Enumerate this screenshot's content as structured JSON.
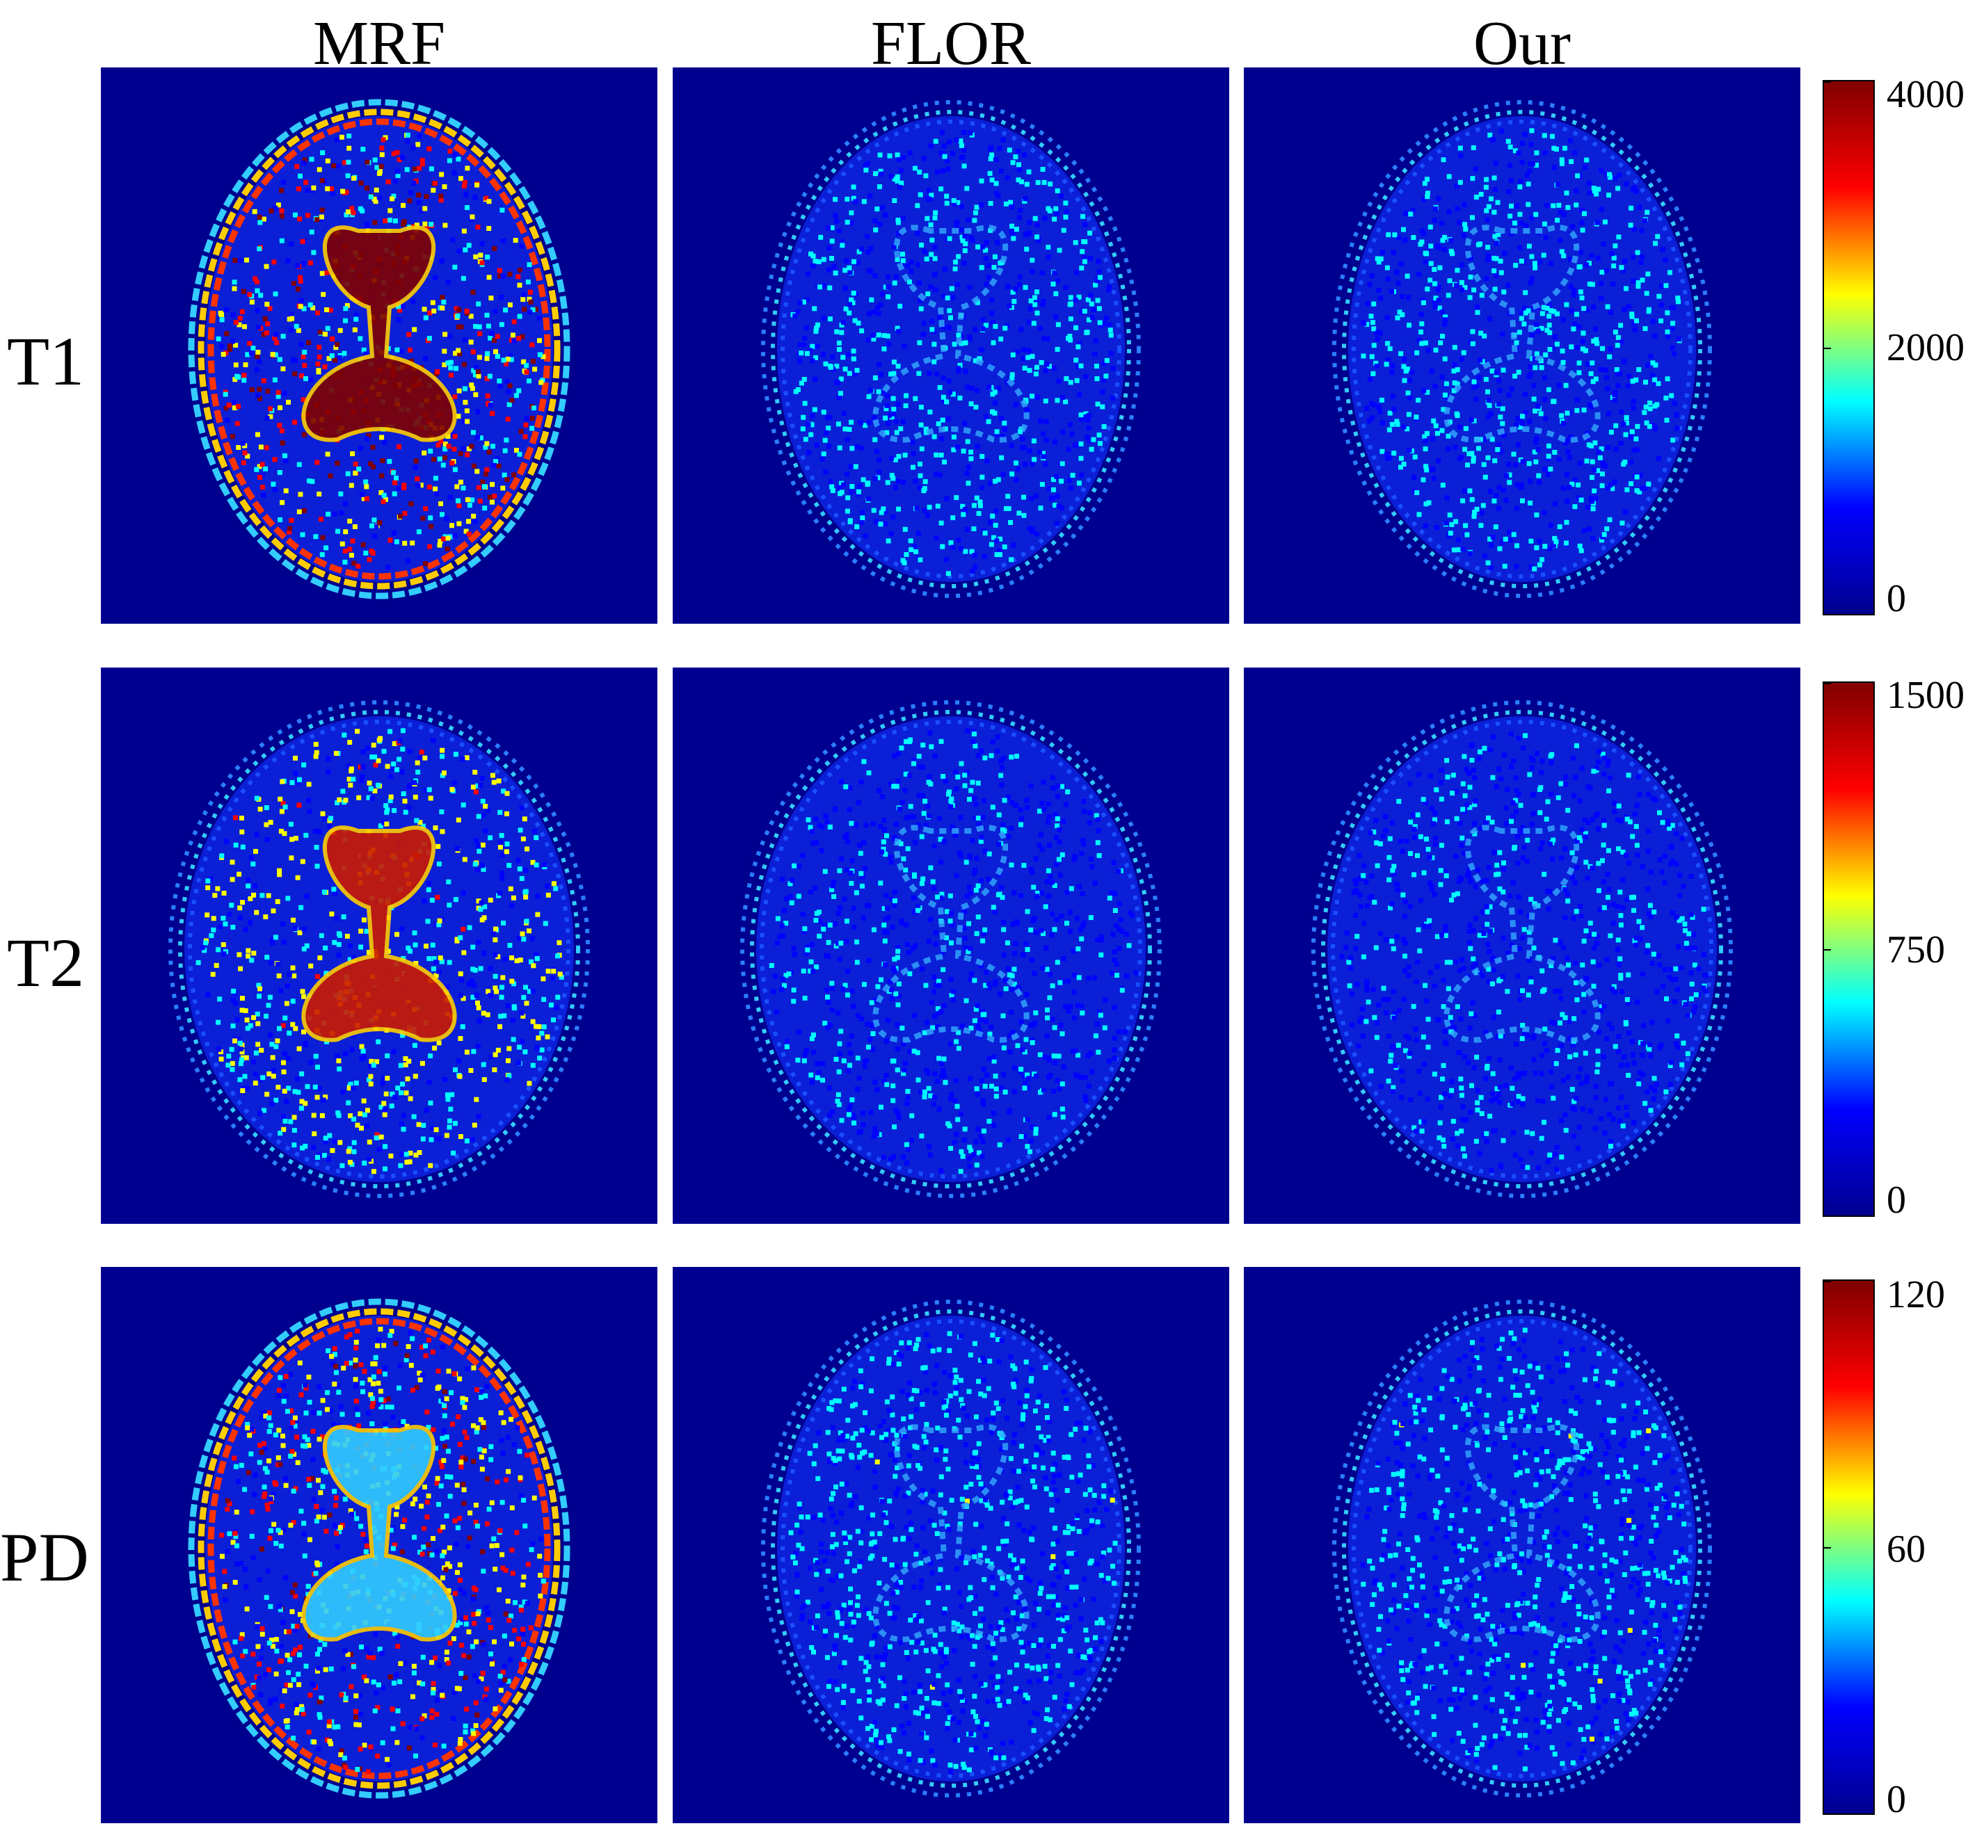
{
  "columns": [
    "MRF",
    "FLOR",
    "Our"
  ],
  "rows": [
    "T1",
    "T2",
    "PD"
  ],
  "colorbars": [
    {
      "ticks": [
        "4000",
        "2000",
        "0"
      ]
    },
    {
      "ticks": [
        "1500",
        "750",
        "0"
      ]
    },
    {
      "ticks": [
        "120",
        "60",
        "0"
      ]
    }
  ],
  "colormap": "jet",
  "colors": {
    "background": "#00008f",
    "jet_stops": [
      "#00008f",
      "#0000ff",
      "#00ffff",
      "#ffff00",
      "#ff0000",
      "#800000"
    ]
  },
  "panels": [
    {
      "row": 0,
      "col": 0,
      "level": 0.55
    },
    {
      "row": 0,
      "col": 1,
      "level": 0.2
    },
    {
      "row": 0,
      "col": 2,
      "level": 0.2
    },
    {
      "row": 1,
      "col": 0,
      "level": 0.35
    },
    {
      "row": 1,
      "col": 1,
      "level": 0.15
    },
    {
      "row": 1,
      "col": 2,
      "level": 0.15
    },
    {
      "row": 2,
      "col": 0,
      "level": 0.5
    },
    {
      "row": 2,
      "col": 1,
      "level": 0.22
    },
    {
      "row": 2,
      "col": 2,
      "level": 0.22
    }
  ]
}
